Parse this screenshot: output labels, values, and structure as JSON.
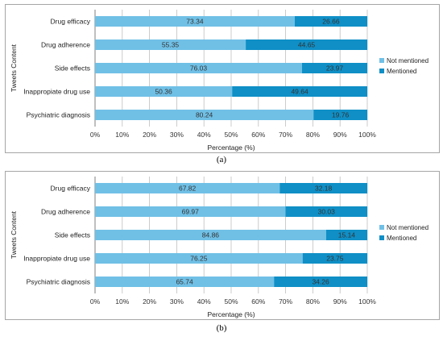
{
  "colors": {
    "not_mentioned": "#70c0e6",
    "mentioned": "#0f8fc6",
    "grid": "#bfbfbf",
    "axis": "#7f7f7f"
  },
  "chart_data": [
    {
      "type": "bar",
      "orientation": "horizontal",
      "stacked": true,
      "caption": "(a)",
      "categories": [
        "Drug efficacy",
        "Drug adherence",
        "Side effects",
        "Inappropiate drug use",
        "Psychiatric diagnosis"
      ],
      "series": [
        {
          "name": "Not mentioned",
          "values": [
            73.34,
            55.35,
            76.03,
            50.36,
            80.24
          ]
        },
        {
          "name": "Mentioned",
          "values": [
            26.66,
            44.65,
            23.97,
            49.64,
            19.76
          ]
        }
      ],
      "xlabel": "Percentage (%)",
      "ylabel": "Tweets Content",
      "xlim": [
        0,
        100
      ],
      "xticks": [
        "0%",
        "10%",
        "20%",
        "30%",
        "40%",
        "50%",
        "60%",
        "70%",
        "80%",
        "90%",
        "100%"
      ],
      "grid": true,
      "legend": "right"
    },
    {
      "type": "bar",
      "orientation": "horizontal",
      "stacked": true,
      "caption": "(b)",
      "categories": [
        "Drug efficacy",
        "Drug adherence",
        "Side effects",
        "Inappropiate drug use",
        "Psychiatric diagnosis"
      ],
      "series": [
        {
          "name": "Not mentioned",
          "values": [
            67.82,
            69.97,
            84.86,
            76.25,
            65.74
          ]
        },
        {
          "name": "Mentioned",
          "values": [
            32.18,
            30.03,
            15.14,
            23.75,
            34.26
          ]
        }
      ],
      "xlabel": "Percentage (%)",
      "ylabel": "Tweets Content",
      "xlim": [
        0,
        100
      ],
      "xticks": [
        "0%",
        "10%",
        "20%",
        "30%",
        "40%",
        "50%",
        "60%",
        "70%",
        "80%",
        "90%",
        "100%"
      ],
      "grid": true,
      "legend": "right"
    }
  ]
}
